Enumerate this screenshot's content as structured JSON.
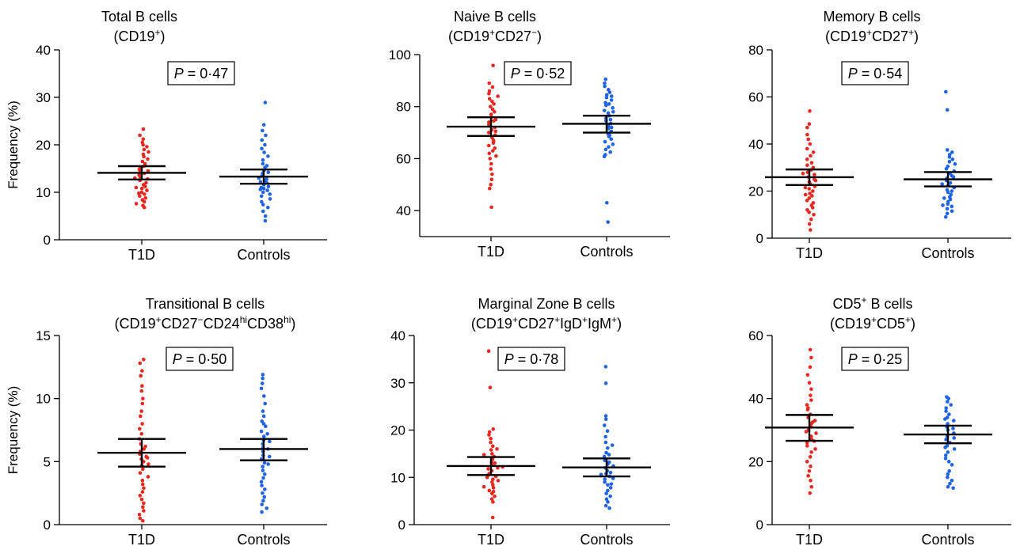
{
  "figure": {
    "y_axis_label": "Frequency (%)",
    "categories": [
      "T1D",
      "Controls"
    ],
    "series_colors": {
      "T1D": "#e8281e",
      "Controls": "#1f63e6"
    }
  },
  "chart_data": [
    {
      "type": "scatter",
      "title": "Total B cells",
      "subtitle": [
        {
          "t": "(CD19"
        },
        {
          "t": "+",
          "s": "sup"
        },
        {
          "t": ")"
        }
      ],
      "p_label": "P",
      "p_value": "= 0·47",
      "ylabel": "Frequency (%)",
      "ylim": [
        0,
        40
      ],
      "yticks": [
        0,
        10,
        20,
        30,
        40
      ],
      "categories": [
        "T1D",
        "Controls"
      ],
      "series": [
        {
          "name": "T1D",
          "mean": 14.1,
          "ci": [
            12.7,
            15.5
          ],
          "values": [
            23.3,
            22.0,
            21.2,
            20.5,
            20.0,
            19.6,
            19.0,
            18.5,
            18.0,
            17.5,
            17.0,
            16.5,
            16.0,
            15.5,
            15.0,
            14.5,
            14.2,
            14.0,
            13.6,
            13.2,
            12.8,
            12.5,
            12.0,
            11.6,
            11.2,
            10.8,
            10.4,
            10.0,
            9.6,
            9.2,
            8.8,
            8.4,
            8.0,
            7.6,
            7.2,
            6.8,
            14.8,
            13.0,
            11.0,
            9.8
          ]
        },
        {
          "name": "Controls",
          "mean": 13.3,
          "ci": [
            11.8,
            14.8
          ],
          "values": [
            28.9,
            24.2,
            23.0,
            22.0,
            21.0,
            20.0,
            19.2,
            18.4,
            17.6,
            16.8,
            16.0,
            15.2,
            14.6,
            14.0,
            13.4,
            12.8,
            12.4,
            12.0,
            11.6,
            11.2,
            10.8,
            10.4,
            10.0,
            9.6,
            9.2,
            8.6,
            8.0,
            7.4,
            6.8,
            6.0,
            5.0,
            4.0,
            13.0,
            12.2,
            11.0,
            14.2,
            15.6,
            10.6
          ]
        }
      ]
    },
    {
      "type": "scatter",
      "title": "Naive B cells",
      "subtitle": [
        {
          "t": "(CD19"
        },
        {
          "t": "+",
          "s": "sup"
        },
        {
          "t": "CD27"
        },
        {
          "t": "−",
          "s": "sup"
        },
        {
          "t": ")"
        }
      ],
      "p_label": "P",
      "p_value": "= 0·52",
      "ylabel": "",
      "ylim": [
        30,
        100
      ],
      "yticks": [
        40,
        60,
        80,
        100
      ],
      "categories": [
        "T1D",
        "Controls"
      ],
      "series": [
        {
          "name": "T1D",
          "mean": 72.3,
          "ci": [
            68.7,
            75.9
          ],
          "values": [
            95.8,
            89.0,
            87.5,
            86.0,
            85.0,
            84.0,
            83.0,
            82.0,
            81.0,
            80.0,
            79.0,
            78.0,
            77.0,
            76.0,
            75.0,
            74.0,
            73.0,
            72.0,
            71.0,
            70.0,
            69.0,
            68.0,
            67.0,
            66.0,
            65.0,
            64.0,
            63.0,
            62.0,
            61.0,
            60.0,
            58.0,
            56.0,
            54.0,
            52.0,
            50.0,
            48.5,
            41.3,
            74.5,
            70.5,
            66.5
          ]
        },
        {
          "name": "Controls",
          "mean": 73.4,
          "ci": [
            70.0,
            76.5
          ],
          "values": [
            90.5,
            89.0,
            87.8,
            86.5,
            85.5,
            84.5,
            83.5,
            82.5,
            81.5,
            80.5,
            79.5,
            78.5,
            77.5,
            76.5,
            75.5,
            74.5,
            73.5,
            72.5,
            71.5,
            70.5,
            69.5,
            68.5,
            67.5,
            66.5,
            65.5,
            64.5,
            63.5,
            62.5,
            61.5,
            60.8,
            43.0,
            35.6,
            75.0,
            72.0,
            69.0,
            78.0,
            81.0,
            84.0
          ]
        }
      ]
    },
    {
      "type": "scatter",
      "title": "Memory B cells",
      "subtitle": [
        {
          "t": "(CD19"
        },
        {
          "t": "+",
          "s": "sup"
        },
        {
          "t": "CD27"
        },
        {
          "t": "+",
          "s": "sup"
        },
        {
          "t": ")"
        }
      ],
      "p_label": "P",
      "p_value": "= 0·54",
      "ylabel": "",
      "ylim": [
        0,
        80
      ],
      "yticks": [
        0,
        20,
        40,
        60,
        80
      ],
      "categories": [
        "T1D",
        "Controls"
      ],
      "series": [
        {
          "name": "T1D",
          "mean": 25.9,
          "ci": [
            22.6,
            29.2
          ],
          "values": [
            54.0,
            48.5,
            47.0,
            44.0,
            42.0,
            40.0,
            38.0,
            36.5,
            35.0,
            33.5,
            32.0,
            31.0,
            30.0,
            29.0,
            28.0,
            27.0,
            26.0,
            25.0,
            24.0,
            23.0,
            22.0,
            21.0,
            20.0,
            19.0,
            18.0,
            17.0,
            16.0,
            15.0,
            14.0,
            13.0,
            12.0,
            11.0,
            10.0,
            8.0,
            6.0,
            3.5,
            27.5,
            24.5,
            21.5,
            18.5
          ]
        },
        {
          "name": "Controls",
          "mean": 25.0,
          "ci": [
            22.0,
            28.1
          ],
          "values": [
            62.2,
            54.5,
            37.5,
            36.5,
            35.5,
            34.5,
            33.5,
            32.5,
            31.5,
            30.5,
            29.5,
            28.5,
            27.5,
            26.5,
            25.5,
            24.5,
            23.5,
            22.5,
            21.5,
            20.5,
            19.5,
            18.5,
            17.5,
            16.5,
            15.5,
            14.5,
            13.5,
            12.5,
            11.5,
            10.5,
            9.0,
            26.0,
            23.0,
            20.0,
            17.0,
            14.0
          ]
        }
      ]
    },
    {
      "type": "scatter",
      "title": "Transitional B cells",
      "subtitle": [
        {
          "t": "(CD19"
        },
        {
          "t": "+",
          "s": "sup"
        },
        {
          "t": "CD27"
        },
        {
          "t": "−",
          "s": "sup"
        },
        {
          "t": "CD24"
        },
        {
          "t": "hi",
          "s": "sup"
        },
        {
          "t": "CD38"
        },
        {
          "t": "hi",
          "s": "sup"
        },
        {
          "t": ")"
        }
      ],
      "p_label": "P",
      "p_value": "= 0·50",
      "ylabel": "Frequency (%)",
      "ylim": [
        0,
        15
      ],
      "yticks": [
        0,
        5,
        10,
        15
      ],
      "categories": [
        "T1D",
        "Controls"
      ],
      "series": [
        {
          "name": "T1D",
          "mean": 5.7,
          "ci": [
            4.6,
            6.8
          ],
          "values": [
            13.1,
            12.8,
            12.2,
            11.8,
            11.0,
            10.6,
            10.0,
            9.6,
            9.0,
            8.6,
            8.0,
            7.6,
            7.2,
            6.8,
            6.4,
            6.0,
            5.8,
            5.6,
            5.4,
            5.2,
            5.0,
            4.7,
            4.4,
            4.1,
            3.8,
            3.5,
            3.2,
            2.9,
            2.6,
            2.3,
            2.0,
            1.7,
            1.4,
            1.1,
            0.8,
            0.5,
            0.3,
            6.2,
            5.3,
            4.8
          ]
        },
        {
          "name": "Controls",
          "mean": 6.0,
          "ci": [
            5.1,
            6.8
          ],
          "values": [
            11.9,
            11.6,
            11.2,
            10.8,
            10.2,
            9.6,
            9.0,
            8.6,
            8.2,
            7.8,
            7.4,
            7.0,
            6.7,
            6.4,
            6.1,
            5.8,
            5.5,
            5.2,
            4.9,
            4.6,
            4.3,
            4.0,
            3.7,
            3.4,
            3.1,
            2.8,
            2.5,
            2.2,
            1.9,
            1.6,
            1.3,
            1.0,
            6.6,
            6.0,
            5.4,
            4.8,
            7.2,
            8.0
          ]
        }
      ]
    },
    {
      "type": "scatter",
      "title": "Marginal Zone B cells",
      "subtitle": [
        {
          "t": "(CD19"
        },
        {
          "t": "+",
          "s": "sup"
        },
        {
          "t": "CD27"
        },
        {
          "t": "+",
          "s": "sup"
        },
        {
          "t": "IgD"
        },
        {
          "t": "+",
          "s": "sup"
        },
        {
          "t": "IgM"
        },
        {
          "t": "+",
          "s": "sup"
        },
        {
          "t": ")"
        }
      ],
      "p_label": "P",
      "p_value": "= 0·78",
      "ylabel": "",
      "ylim": [
        0,
        40
      ],
      "yticks": [
        0,
        10,
        20,
        30,
        40
      ],
      "categories": [
        "T1D",
        "Controls"
      ],
      "series": [
        {
          "name": "T1D",
          "mean": 12.4,
          "ci": [
            10.5,
            14.3
          ],
          "values": [
            36.7,
            29.0,
            20.2,
            19.6,
            19.0,
            18.2,
            17.4,
            16.6,
            15.8,
            15.0,
            14.4,
            13.8,
            13.2,
            12.6,
            12.0,
            11.4,
            10.8,
            10.2,
            9.6,
            9.0,
            8.4,
            7.8,
            7.2,
            6.6,
            6.0,
            5.4,
            4.8,
            1.5,
            13.0,
            11.8,
            10.5,
            9.3,
            8.0,
            14.8,
            16.0,
            12.2,
            10.0,
            7.0
          ]
        },
        {
          "name": "Controls",
          "mean": 12.1,
          "ci": [
            10.2,
            14.0
          ],
          "values": [
            33.4,
            29.9,
            23.0,
            22.3,
            21.0,
            19.8,
            18.6,
            17.4,
            16.2,
            15.2,
            14.4,
            13.6,
            12.8,
            12.0,
            11.4,
            10.8,
            10.2,
            9.6,
            9.0,
            8.4,
            7.8,
            7.2,
            6.6,
            6.0,
            5.4,
            4.8,
            4.0,
            3.5,
            12.4,
            11.0,
            9.8,
            8.6,
            13.2,
            14.8,
            16.8,
            10.6
          ]
        }
      ]
    },
    {
      "type": "scatter",
      "title": "CD5",
      "title_sup": "+",
      "title_rest": " B cells",
      "subtitle": [
        {
          "t": "(CD19"
        },
        {
          "t": "+",
          "s": "sup"
        },
        {
          "t": "CD5"
        },
        {
          "t": "+",
          "s": "sup"
        },
        {
          "t": ")"
        }
      ],
      "p_label": "P",
      "p_value": "= 0·25",
      "ylabel": "",
      "ylim": [
        0,
        60
      ],
      "yticks": [
        0,
        20,
        40,
        60
      ],
      "categories": [
        "T1D",
        "Controls"
      ],
      "series": [
        {
          "name": "T1D",
          "mean": 30.8,
          "ci": [
            26.6,
            34.8
          ],
          "values": [
            55.5,
            53.0,
            50.0,
            47.5,
            45.0,
            43.0,
            41.0,
            39.5,
            38.0,
            36.5,
            35.0,
            34.0,
            33.0,
            32.0,
            31.0,
            30.0,
            29.0,
            28.0,
            27.0,
            26.0,
            25.0,
            24.0,
            23.0,
            21.5,
            20.0,
            18.5,
            17.0,
            15.5,
            14.0,
            12.0,
            10.0,
            32.5,
            29.5,
            26.5,
            37.0
          ]
        },
        {
          "name": "Controls",
          "mean": 28.6,
          "ci": [
            25.8,
            31.4
          ],
          "values": [
            40.5,
            40.0,
            39.0,
            38.0,
            37.0,
            36.0,
            35.0,
            34.0,
            33.0,
            32.0,
            31.0,
            30.0,
            29.0,
            28.0,
            27.0,
            26.0,
            25.0,
            24.0,
            23.0,
            22.0,
            21.0,
            20.0,
            19.0,
            17.0,
            16.0,
            15.0,
            14.0,
            13.0,
            12.0,
            11.6,
            30.5,
            27.5,
            24.5,
            33.5
          ]
        }
      ]
    }
  ]
}
